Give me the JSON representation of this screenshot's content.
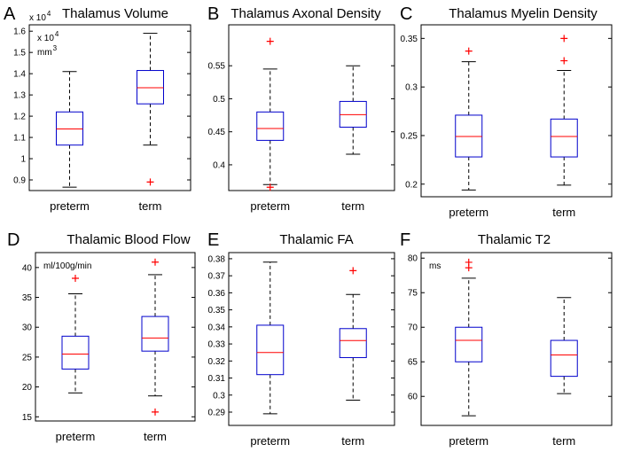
{
  "chart_data": [
    {
      "type": "box",
      "label": "A",
      "title": "Thalamus Volume",
      "multiplier": {
        "text": "x 10",
        "sup": "4"
      },
      "unit_lines": [
        {
          "text": "x 10",
          "sup": "4"
        },
        {
          "text": "mm",
          "sup": "3"
        }
      ],
      "categories": [
        "preterm",
        "term"
      ],
      "boxes": [
        {
          "whisker_low": 0.866,
          "q1": 1.064,
          "median": 1.14,
          "q3": 1.22,
          "whisker_high": 1.41,
          "outliers": []
        },
        {
          "whisker_low": 1.064,
          "q1": 1.258,
          "median": 1.334,
          "q3": 1.415,
          "whisker_high": 1.59,
          "outliers": [
            0.89
          ]
        }
      ],
      "ylim": [
        0.85,
        1.63
      ],
      "yticks": [
        0.9,
        1,
        1.1,
        1.2,
        1.3,
        1.4,
        1.5,
        1.6
      ],
      "box_color": "#0000cc",
      "median_color": "#ff0000",
      "outlier_color": "#ff0000"
    },
    {
      "type": "box",
      "label": "B",
      "title": "Thalamus Axonal Density",
      "categories": [
        "preterm",
        "term"
      ],
      "boxes": [
        {
          "whisker_low": 0.37,
          "q1": 0.437,
          "median": 0.455,
          "q3": 0.48,
          "whisker_high": 0.545,
          "outliers": [
            0.587,
            0.366
          ]
        },
        {
          "whisker_low": 0.416,
          "q1": 0.457,
          "median": 0.476,
          "q3": 0.496,
          "whisker_high": 0.55,
          "outliers": []
        }
      ],
      "ylim": [
        0.361,
        0.612
      ],
      "yticks": [
        0.4,
        0.45,
        0.5,
        0.55
      ],
      "box_color": "#0000cc",
      "median_color": "#ff0000",
      "outlier_color": "#ff0000"
    },
    {
      "type": "box",
      "label": "C",
      "title": "Thalamus Myelin Density",
      "categories": [
        "preterm",
        "term"
      ],
      "boxes": [
        {
          "whisker_low": 0.194,
          "q1": 0.228,
          "median": 0.249,
          "q3": 0.271,
          "whisker_high": 0.326,
          "outliers": [
            0.337
          ]
        },
        {
          "whisker_low": 0.199,
          "q1": 0.228,
          "median": 0.249,
          "q3": 0.267,
          "whisker_high": 0.317,
          "outliers": [
            0.35,
            0.327
          ]
        }
      ],
      "ylim": [
        0.187,
        0.364
      ],
      "yticks": [
        0.2,
        0.25,
        0.3,
        0.35
      ],
      "box_color": "#0000cc",
      "median_color": "#ff0000",
      "outlier_color": "#ff0000"
    },
    {
      "type": "box",
      "label": "D",
      "title": "Thalamic Blood Flow",
      "unit_lines": [
        {
          "text": "ml/100g/min"
        }
      ],
      "categories": [
        "preterm",
        "term"
      ],
      "boxes": [
        {
          "whisker_low": 19,
          "q1": 23,
          "median": 25.5,
          "q3": 28.5,
          "whisker_high": 35.6,
          "outliers": [
            38.2
          ]
        },
        {
          "whisker_low": 18.5,
          "q1": 26,
          "median": 28.2,
          "q3": 31.8,
          "whisker_high": 38.8,
          "outliers": [
            40.9,
            15.8
          ]
        }
      ],
      "ylim": [
        14.3,
        42.5
      ],
      "yticks": [
        15,
        20,
        25,
        30,
        35,
        40
      ],
      "box_color": "#0000cc",
      "median_color": "#ff0000",
      "outlier_color": "#ff0000"
    },
    {
      "type": "box",
      "label": "E",
      "title": "Thalamic FA",
      "categories": [
        "preterm",
        "term"
      ],
      "boxes": [
        {
          "whisker_low": 0.289,
          "q1": 0.312,
          "median": 0.325,
          "q3": 0.341,
          "whisker_high": 0.378,
          "outliers": []
        },
        {
          "whisker_low": 0.297,
          "q1": 0.322,
          "median": 0.332,
          "q3": 0.339,
          "whisker_high": 0.359,
          "outliers": [
            0.373
          ]
        }
      ],
      "ylim": [
        0.2822,
        0.3836
      ],
      "yticks": [
        0.29,
        0.3,
        0.31,
        0.32,
        0.33,
        0.34,
        0.35,
        0.36,
        0.37,
        0.38
      ],
      "box_color": "#0000cc",
      "median_color": "#ff0000",
      "outlier_color": "#ff0000"
    },
    {
      "type": "box",
      "label": "F",
      "title": "Thalamic T2",
      "unit_lines": [
        {
          "text": "ms"
        }
      ],
      "categories": [
        "preterm",
        "term"
      ],
      "boxes": [
        {
          "whisker_low": 57.2,
          "q1": 65,
          "median": 68.1,
          "q3": 70,
          "whisker_high": 77.1,
          "outliers": [
            79.4,
            78.6
          ]
        },
        {
          "whisker_low": 60.4,
          "q1": 62.9,
          "median": 66,
          "q3": 68.1,
          "whisker_high": 74.3,
          "outliers": []
        }
      ],
      "ylim": [
        55.8,
        80.8
      ],
      "yticks": [
        60,
        65,
        70,
        75,
        80
      ],
      "box_color": "#0000cc",
      "median_color": "#ff0000",
      "outlier_color": "#ff0000"
    }
  ]
}
